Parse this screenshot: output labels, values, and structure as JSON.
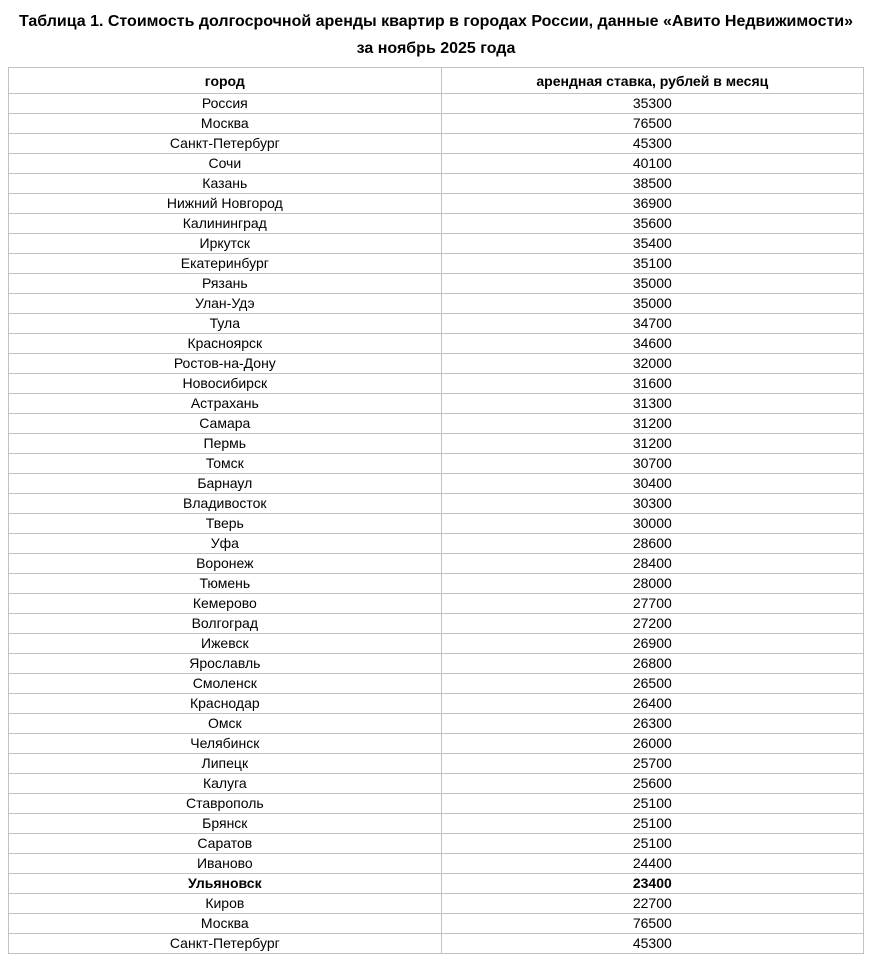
{
  "page": {
    "title": "Таблица 1. Стоимость долгосрочной аренды квартир в городах России, данные «Авито Недвижимости» за ноябрь 2025 года"
  },
  "table": {
    "columns": [
      "город",
      "арендная ставка, рублей в месяц"
    ],
    "rows": [
      {
        "city": "Россия",
        "rate": "35300",
        "bold": false
      },
      {
        "city": "Москва",
        "rate": "76500",
        "bold": false
      },
      {
        "city": "Санкт-Петербург",
        "rate": "45300",
        "bold": false
      },
      {
        "city": "Сочи",
        "rate": "40100",
        "bold": false
      },
      {
        "city": "Казань",
        "rate": "38500",
        "bold": false
      },
      {
        "city": "Нижний Новгород",
        "rate": "36900",
        "bold": false
      },
      {
        "city": "Калининград",
        "rate": "35600",
        "bold": false
      },
      {
        "city": "Иркутск",
        "rate": "35400",
        "bold": false
      },
      {
        "city": "Екатеринбург",
        "rate": "35100",
        "bold": false
      },
      {
        "city": "Рязань",
        "rate": "35000",
        "bold": false
      },
      {
        "city": "Улан-Удэ",
        "rate": "35000",
        "bold": false
      },
      {
        "city": "Тула",
        "rate": "34700",
        "bold": false
      },
      {
        "city": "Красноярск",
        "rate": "34600",
        "bold": false
      },
      {
        "city": "Ростов-на-Дону",
        "rate": "32000",
        "bold": false
      },
      {
        "city": "Новосибирск",
        "rate": "31600",
        "bold": false
      },
      {
        "city": "Астрахань",
        "rate": "31300",
        "bold": false
      },
      {
        "city": "Самара",
        "rate": "31200",
        "bold": false
      },
      {
        "city": "Пермь",
        "rate": "31200",
        "bold": false
      },
      {
        "city": "Томск",
        "rate": "30700",
        "bold": false
      },
      {
        "city": "Барнаул",
        "rate": "30400",
        "bold": false
      },
      {
        "city": "Владивосток",
        "rate": "30300",
        "bold": false
      },
      {
        "city": "Тверь",
        "rate": "30000",
        "bold": false
      },
      {
        "city": "Уфа",
        "rate": "28600",
        "bold": false
      },
      {
        "city": "Воронеж",
        "rate": "28400",
        "bold": false
      },
      {
        "city": "Тюмень",
        "rate": "28000",
        "bold": false
      },
      {
        "city": "Кемерово",
        "rate": "27700",
        "bold": false
      },
      {
        "city": "Волгоград",
        "rate": "27200",
        "bold": false
      },
      {
        "city": "Ижевск",
        "rate": "26900",
        "bold": false
      },
      {
        "city": "Ярославль",
        "rate": "26800",
        "bold": false
      },
      {
        "city": "Смоленск",
        "rate": "26500",
        "bold": false
      },
      {
        "city": "Краснодар",
        "rate": "26400",
        "bold": false
      },
      {
        "city": "Омск",
        "rate": "26300",
        "bold": false
      },
      {
        "city": "Челябинск",
        "rate": "26000",
        "bold": false
      },
      {
        "city": "Липецк",
        "rate": "25700",
        "bold": false
      },
      {
        "city": "Калуга",
        "rate": "25600",
        "bold": false
      },
      {
        "city": "Ставрополь",
        "rate": "25100",
        "bold": false
      },
      {
        "city": "Брянск",
        "rate": "25100",
        "bold": false
      },
      {
        "city": "Саратов",
        "rate": "25100",
        "bold": false
      },
      {
        "city": "Иваново",
        "rate": "24400",
        "bold": false
      },
      {
        "city": "Ульяновск",
        "rate": "23400",
        "bold": true
      },
      {
        "city": "Киров",
        "rate": "22700",
        "bold": false
      },
      {
        "city": "Москва",
        "rate": "76500",
        "bold": false
      },
      {
        "city": "Санкт-Петербург",
        "rate": "45300",
        "bold": false
      }
    ]
  },
  "colors": {
    "border": "#c2c2c2",
    "text": "#000000",
    "background": "#ffffff"
  }
}
